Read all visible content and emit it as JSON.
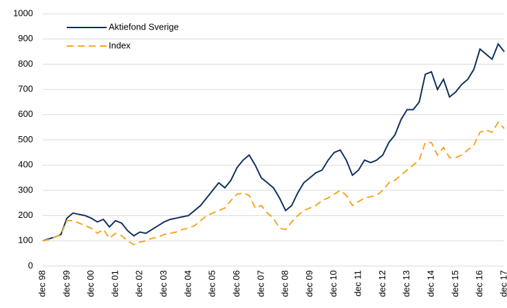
{
  "chart_data": {
    "type": "line",
    "categories": [
      "dec 98",
      null,
      null,
      null,
      "dec 99",
      null,
      null,
      null,
      "dec 00",
      null,
      null,
      null,
      "dec 01",
      null,
      null,
      null,
      "dec 02",
      null,
      null,
      null,
      "dec 03",
      null,
      null,
      null,
      "dec 04",
      null,
      null,
      null,
      "dec 05",
      null,
      null,
      null,
      "dec 06",
      null,
      null,
      null,
      "dec 07",
      null,
      null,
      null,
      "dec 08",
      null,
      null,
      null,
      "dec 09",
      null,
      null,
      null,
      "dec 10",
      null,
      null,
      null,
      "dec 11",
      null,
      null,
      null,
      "dec 12",
      null,
      null,
      null,
      "dec 13",
      null,
      null,
      null,
      "dec 14",
      null,
      null,
      null,
      "dec 15",
      null,
      null,
      null,
      "dec 16",
      null,
      null,
      null,
      "dec 17"
    ],
    "series": [
      {
        "name": "Aktiefond Sverige",
        "color": "#0e2e5e",
        "dashed": false,
        "values": [
          100,
          108,
          115,
          125,
          190,
          210,
          205,
          200,
          190,
          175,
          185,
          155,
          180,
          170,
          140,
          120,
          135,
          130,
          145,
          160,
          175,
          185,
          190,
          195,
          200,
          220,
          240,
          270,
          300,
          330,
          310,
          340,
          390,
          420,
          440,
          400,
          350,
          330,
          310,
          270,
          220,
          240,
          290,
          330,
          350,
          370,
          380,
          420,
          450,
          460,
          420,
          360,
          380,
          420,
          410,
          420,
          440,
          490,
          520,
          580,
          620,
          620,
          650,
          760,
          770,
          700,
          740,
          670,
          690,
          720,
          740,
          780,
          860,
          840,
          820,
          880,
          850
        ]
      },
      {
        "name": "Index",
        "color": "#f5a623",
        "dashed": true,
        "values": [
          100,
          105,
          115,
          125,
          180,
          180,
          170,
          160,
          150,
          130,
          145,
          110,
          130,
          120,
          100,
          85,
          95,
          100,
          110,
          115,
          125,
          130,
          135,
          145,
          150,
          160,
          180,
          200,
          210,
          220,
          230,
          260,
          285,
          290,
          280,
          230,
          240,
          210,
          190,
          150,
          145,
          175,
          200,
          220,
          230,
          240,
          260,
          270,
          285,
          300,
          280,
          240,
          255,
          270,
          275,
          280,
          300,
          330,
          340,
          360,
          380,
          400,
          420,
          490,
          490,
          440,
          470,
          430,
          430,
          440,
          460,
          480,
          530,
          540,
          530,
          570,
          545
        ]
      }
    ],
    "ylim": [
      0,
      1000
    ],
    "yticks": [
      0,
      100,
      200,
      300,
      400,
      500,
      600,
      700,
      800,
      900,
      1000
    ],
    "grid": true,
    "legend": "top-left"
  }
}
